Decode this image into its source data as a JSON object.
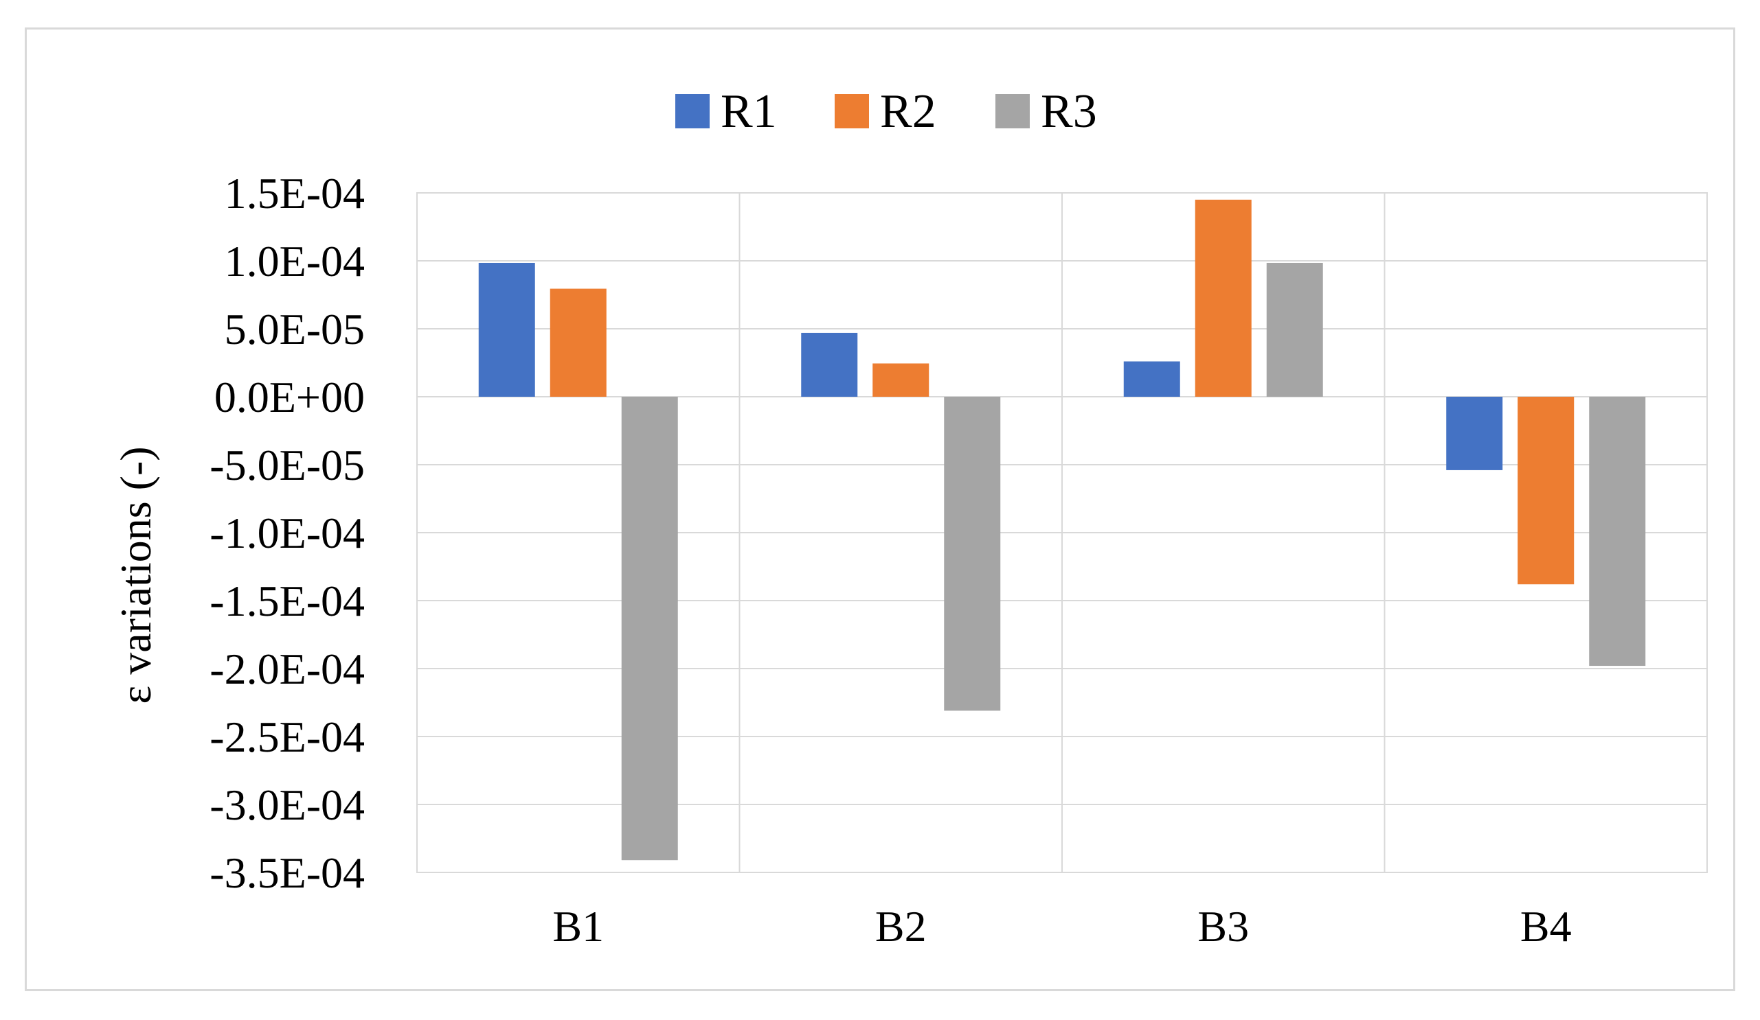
{
  "chart_data": {
    "type": "bar",
    "title": "",
    "xlabel": "",
    "ylabel": "ε  variations (-)",
    "categories": [
      "B1",
      "B2",
      "B3",
      "B4"
    ],
    "series": [
      {
        "name": "R1",
        "color": "#4472c4",
        "values": [
          9.85e-05,
          4.7e-05,
          2.6e-05,
          -5.4e-05
        ]
      },
      {
        "name": "R2",
        "color": "#ed7d31",
        "values": [
          7.95e-05,
          2.45e-05,
          0.000145,
          -0.000138
        ]
      },
      {
        "name": "R3",
        "color": "#a5a5a5",
        "values": [
          -0.000341,
          -0.000231,
          9.85e-05,
          -0.000198
        ]
      }
    ],
    "ylim": [
      -0.00035,
      0.00015
    ],
    "yticks": [
      0.00015,
      0.0001,
      5e-05,
      0,
      -5e-05,
      -0.0001,
      -0.00015,
      -0.0002,
      -0.00025,
      -0.0003,
      -0.00035
    ],
    "ytick_labels": [
      "1.5E-04",
      "1.0E-04",
      "5.0E-05",
      "0.0E+00",
      "-5.0E-05",
      "-1.0E-04",
      "-1.5E-04",
      "-2.0E-04",
      "-2.5E-04",
      "-3.0E-04",
      "-3.5E-04"
    ],
    "grid": true,
    "legend_position": "top-center"
  }
}
